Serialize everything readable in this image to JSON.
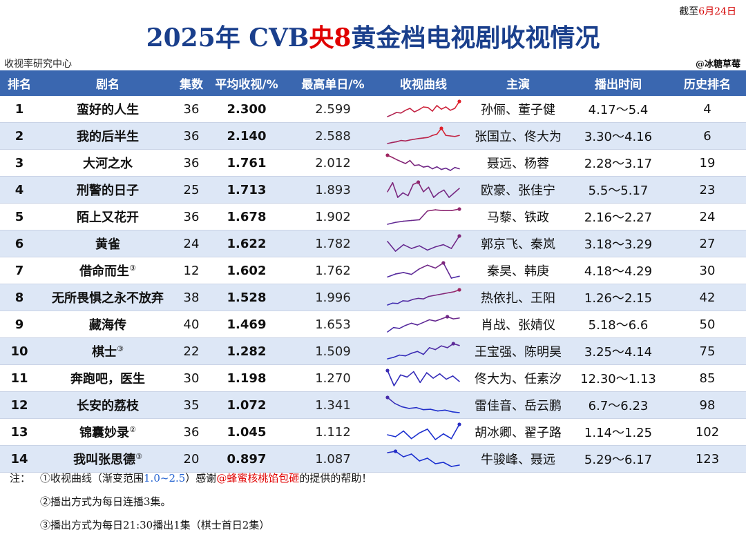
{
  "header": {
    "deadline_prefix": "截至",
    "deadline_date": "6月24日",
    "title_part1": "2025年 CVB",
    "title_part2": "央8",
    "title_part3": "黄金档电视剧收视情况",
    "source": "收视率研究中心",
    "credit": "@冰糖草莓"
  },
  "colors": {
    "header_bg": "#3a67b0",
    "alt_row": "#dde7f6",
    "title": "#1a3f8c",
    "accent_red": "#e00000",
    "gradient_low": "#1a2fd0",
    "gradient_high": "#e0202a"
  },
  "columns": [
    "排名",
    "剧名",
    "集数",
    "平均收视/%",
    "最高单日/%",
    "收视曲线",
    "主演",
    "播出时间",
    "历史排名"
  ],
  "rows": [
    {
      "rank": "1",
      "name": "蛮好的人生",
      "mark": "",
      "eps": "36",
      "avg": "2.300",
      "peak": "2.599",
      "cast": "孙俪、董子健",
      "period": "4.17～5.4",
      "hist": "4"
    },
    {
      "rank": "2",
      "name": "我的后半生",
      "mark": "",
      "eps": "36",
      "avg": "2.140",
      "peak": "2.588",
      "cast": "张国立、佟大为",
      "period": "3.30～4.16",
      "hist": "6"
    },
    {
      "rank": "3",
      "name": "大河之水",
      "mark": "",
      "eps": "36",
      "avg": "1.761",
      "peak": "2.012",
      "cast": "聂远、杨蓉",
      "period": "2.28～3.17",
      "hist": "19"
    },
    {
      "rank": "4",
      "name": "刑警的日子",
      "mark": "",
      "eps": "25",
      "avg": "1.713",
      "peak": "1.893",
      "cast": "欧豪、张佳宁",
      "period": "5.5～5.17",
      "hist": "23"
    },
    {
      "rank": "5",
      "name": "陌上又花开",
      "mark": "",
      "eps": "36",
      "avg": "1.678",
      "peak": "1.902",
      "cast": "马藜、铁政",
      "period": "2.16～2.27",
      "hist": "24"
    },
    {
      "rank": "6",
      "name": "黄雀",
      "mark": "",
      "eps": "24",
      "avg": "1.622",
      "peak": "1.782",
      "cast": "郭京飞、秦岚",
      "period": "3.18～3.29",
      "hist": "27"
    },
    {
      "rank": "7",
      "name": "借命而生",
      "mark": "③",
      "eps": "12",
      "avg": "1.602",
      "peak": "1.762",
      "cast": "秦昊、韩庚",
      "period": "4.18～4.29",
      "hist": "30"
    },
    {
      "rank": "8",
      "name": "无所畏惧之永不放弃",
      "mark": "",
      "eps": "38",
      "avg": "1.528",
      "peak": "1.996",
      "cast": "热依扎、王阳",
      "period": "1.26～2.15",
      "hist": "42"
    },
    {
      "rank": "9",
      "name": "藏海传",
      "mark": "",
      "eps": "40",
      "avg": "1.469",
      "peak": "1.653",
      "cast": "肖战、张婧仪",
      "period": "5.18～6.6",
      "hist": "50"
    },
    {
      "rank": "10",
      "name": "棋士",
      "mark": "③",
      "eps": "22",
      "avg": "1.282",
      "peak": "1.509",
      "cast": "王宝强、陈明昊",
      "period": "3.25～4.14",
      "hist": "75"
    },
    {
      "rank": "11",
      "name": "奔跑吧，医生",
      "mark": "",
      "eps": "30",
      "avg": "1.198",
      "peak": "1.270",
      "cast": "佟大为、任素汐",
      "period": "12.30～1.13",
      "hist": "85"
    },
    {
      "rank": "12",
      "name": "长安的荔枝",
      "mark": "",
      "eps": "35",
      "avg": "1.072",
      "peak": "1.341",
      "cast": "雷佳音、岳云鹏",
      "period": "6.7～6.23",
      "hist": "98"
    },
    {
      "rank": "13",
      "name": "锦囊妙录",
      "mark": "②",
      "eps": "36",
      "avg": "1.045",
      "peak": "1.112",
      "cast": "胡冰卿、翟子路",
      "period": "1.14～1.25",
      "hist": "102"
    },
    {
      "rank": "14",
      "name": "我叫张思德",
      "mark": "③",
      "eps": "20",
      "avg": "0.897",
      "peak": "1.087",
      "cast": "牛骏峰、聂远",
      "period": "5.29～6.17",
      "hist": "123"
    }
  ],
  "chart_data": {
    "type": "line",
    "color_range": [
      1.0,
      2.5
    ],
    "series": [
      {
        "name": "蛮好的人生",
        "values": [
          2.05,
          2.12,
          2.2,
          2.18,
          2.28,
          2.35,
          2.22,
          2.3,
          2.4,
          2.38,
          2.25,
          2.45,
          2.32,
          2.4,
          2.28,
          2.35,
          2.6
        ]
      },
      {
        "name": "我的后半生",
        "values": [
          1.98,
          2.02,
          2.05,
          2.1,
          2.08,
          2.12,
          2.15,
          2.18,
          2.2,
          2.22,
          2.3,
          2.35,
          2.58,
          2.3,
          2.28,
          2.26,
          2.3
        ]
      },
      {
        "name": "大河之水",
        "values": [
          2.01,
          1.95,
          1.88,
          1.82,
          1.76,
          1.85,
          1.7,
          1.72,
          1.65,
          1.68,
          1.6,
          1.66,
          1.58,
          1.62,
          1.55,
          1.64,
          1.6
        ]
      },
      {
        "name": "刑警的日子",
        "values": [
          1.72,
          1.88,
          1.62,
          1.7,
          1.65,
          1.85,
          1.89,
          1.72,
          1.8,
          1.62,
          1.7,
          1.75,
          1.62,
          1.7,
          1.78
        ]
      },
      {
        "name": "陌上又花开",
        "values": [
          1.5,
          1.55,
          1.58,
          1.6,
          1.62,
          1.85,
          1.88,
          1.86,
          1.86,
          1.9
        ]
      },
      {
        "name": "黄雀",
        "values": [
          1.68,
          1.5,
          1.62,
          1.55,
          1.6,
          1.52,
          1.58,
          1.62,
          1.55,
          1.78
        ]
      },
      {
        "name": "借命而生",
        "values": [
          1.38,
          1.46,
          1.5,
          1.45,
          1.6,
          1.7,
          1.62,
          1.76,
          1.35,
          1.4
        ]
      },
      {
        "name": "无所畏惧之永不放弃",
        "values": [
          1.2,
          1.3,
          1.28,
          1.42,
          1.4,
          1.5,
          1.55,
          1.52,
          1.65,
          1.7,
          1.75,
          1.8,
          1.85,
          1.9,
          2.0
        ]
      },
      {
        "name": "藏海传",
        "values": [
          1.3,
          1.4,
          1.38,
          1.45,
          1.5,
          1.46,
          1.52,
          1.58,
          1.55,
          1.6,
          1.65,
          1.6,
          1.62
        ]
      },
      {
        "name": "棋士",
        "values": [
          1.1,
          1.14,
          1.2,
          1.18,
          1.25,
          1.3,
          1.22,
          1.4,
          1.35,
          1.45,
          1.4,
          1.51,
          1.46
        ]
      },
      {
        "name": "奔跑吧，医生",
        "values": [
          1.26,
          1.12,
          1.22,
          1.2,
          1.25,
          1.15,
          1.24,
          1.19,
          1.23,
          1.18,
          1.21,
          1.16
        ]
      },
      {
        "name": "长安的荔枝",
        "values": [
          1.34,
          1.2,
          1.12,
          1.08,
          1.1,
          1.05,
          1.06,
          1.02,
          1.04,
          1.0,
          0.98
        ]
      },
      {
        "name": "锦囊妙录",
        "values": [
          1.0,
          0.98,
          1.04,
          0.96,
          1.02,
          1.06,
          0.95,
          1.01,
          0.96,
          1.11
        ]
      },
      {
        "name": "我叫张思德",
        "values": [
          1.06,
          1.08,
          1.0,
          1.04,
          0.94,
          0.98,
          0.9,
          0.92,
          0.86,
          0.88
        ]
      }
    ]
  },
  "notes": {
    "label": "注：",
    "line1_a": "①收视曲线（渐变范围",
    "line1_range": "1.0~2.5",
    "line1_b": "）感谢",
    "line1_thanks": "@蜂蜜核桃馅包砸",
    "line1_c": "的提供的帮助！",
    "line2": "②播出方式为每日连播3集。",
    "line3": "③播出方式为每日21:30播出1集（棋士首日2集）"
  }
}
